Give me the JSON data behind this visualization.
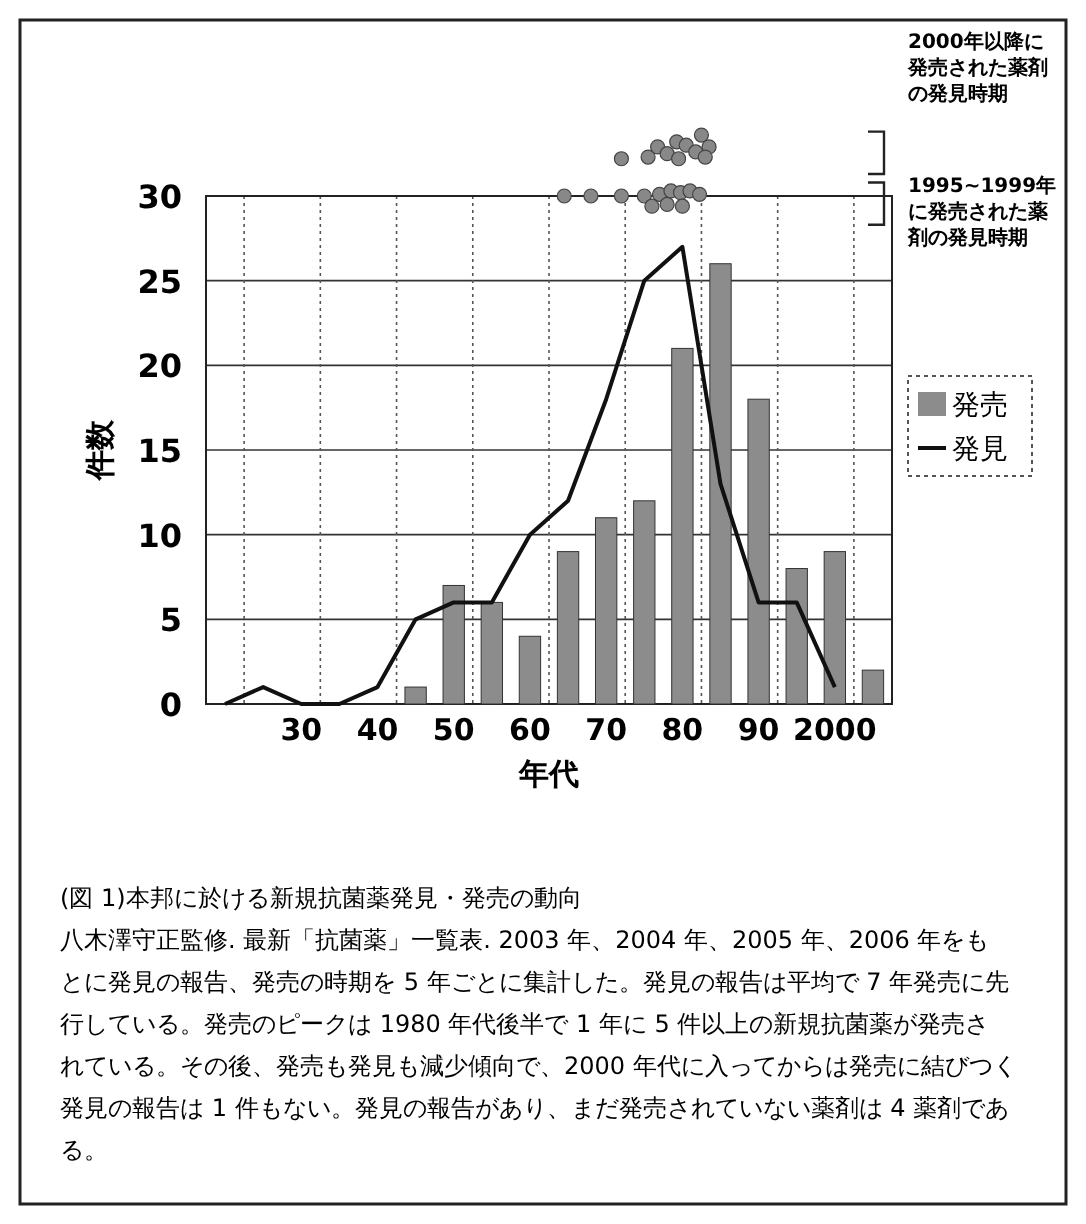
{
  "chart_data": {
    "type": "bar",
    "xlabel": "年代",
    "ylabel": "件数",
    "categories": [
      null,
      null,
      "30",
      null,
      "40",
      null,
      "50",
      null,
      "60",
      null,
      "70",
      null,
      "80",
      null,
      "90",
      null,
      "2000",
      null
    ],
    "series": [
      {
        "name": "発売",
        "color": "#8c8c8c",
        "values": [
          null,
          null,
          null,
          null,
          null,
          1,
          7,
          6,
          4,
          9,
          11,
          12,
          21,
          26,
          18,
          8,
          9,
          2
        ]
      },
      {
        "name": "発見",
        "type": "line",
        "color": "#111111",
        "values": [
          0,
          1,
          0,
          0,
          1,
          5,
          6,
          6,
          10,
          12,
          18,
          25,
          27,
          13,
          6,
          6,
          1,
          null
        ]
      }
    ],
    "ylim": [
      0,
      30
    ],
    "yticks": [
      0,
      5,
      10,
      15,
      20,
      25,
      30
    ],
    "grid": true,
    "legend": "right",
    "marker": "none",
    "line_style": "solid",
    "annotations": [
      "2000年以降に発売された薬剤の発見時期",
      "1995~1999年に発売された薬剤の発見時期",
      "(図 1)本邦に於ける新規抗菌薬発見・発売の動向",
      "八木澤守正監修. 最新「抗菌薬」一覧表. 2003 年、2004 年、2005 年、2006 年をもとに発見の報告、発売の時期を 5 年ごとに集計した。発見の報告は平均で 7 年発売に先行している。発売のピークは 1980 年代後半で 1 年に 5 件以上の新規抗菌薬が発売されている。その後、発売も発見も減少傾向で、2000 年代に入ってからは発売に結びつく発見の報告は 1 件もない。発見の報告があり、まだ発売されていない薬剤は 4 薬剤である。"
    ]
  }
}
